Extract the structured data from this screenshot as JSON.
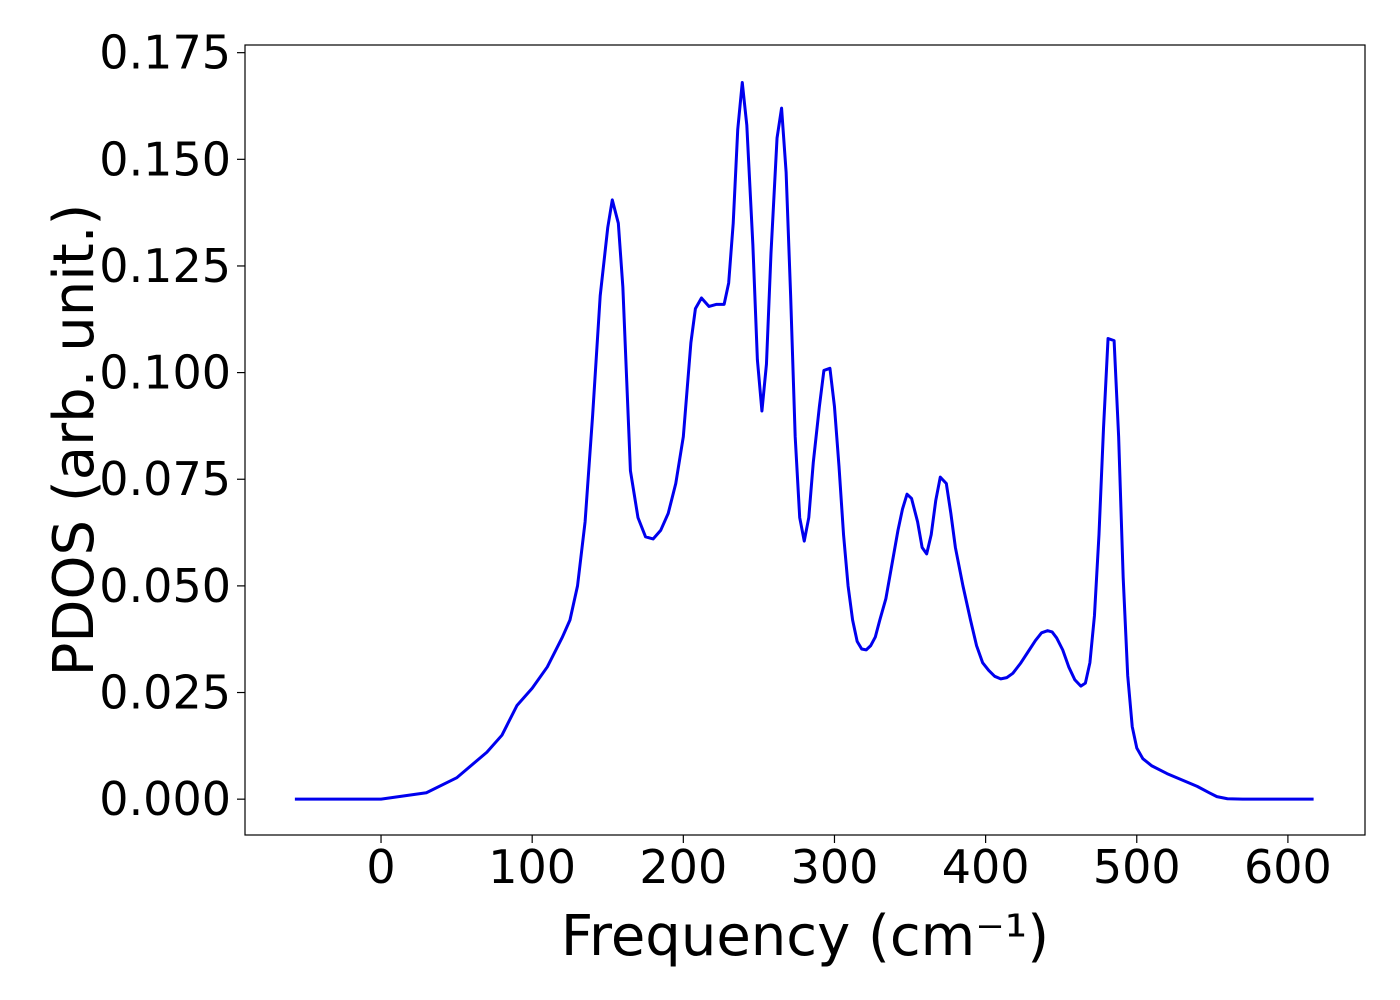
{
  "chart_data": {
    "type": "line",
    "xlabel": "Frequency (cm⁻¹)",
    "ylabel": "PDOS (arb. unit.)",
    "xlim": [
      -90,
      651
    ],
    "ylim": [
      -0.0084,
      0.1768
    ],
    "xticks": [
      0,
      100,
      200,
      300,
      400,
      500,
      600
    ],
    "yticks": [
      {
        "value": 0,
        "label": "0.000"
      },
      {
        "value": 0.025,
        "label": "0.025"
      },
      {
        "value": 0.05,
        "label": "0.050"
      },
      {
        "value": 0.075,
        "label": "0.075"
      },
      {
        "value": 0.1,
        "label": "0.100"
      },
      {
        "value": 0.125,
        "label": "0.125"
      },
      {
        "value": 0.15,
        "label": "0.150"
      },
      {
        "value": 0.175,
        "label": "0.175"
      }
    ],
    "grid": false,
    "series": [
      {
        "color": "#0000ee",
        "x": [
          -57,
          0,
          10,
          30,
          50,
          70,
          80,
          90,
          100,
          110,
          120,
          125,
          130,
          135,
          140,
          145,
          150,
          153,
          157,
          160,
          165,
          170,
          175,
          180,
          185,
          190,
          195,
          200,
          205,
          208,
          212,
          217,
          222,
          227,
          230,
          233,
          236,
          239,
          242,
          246,
          249,
          252,
          255,
          258,
          262,
          265,
          268,
          271,
          274,
          277,
          280,
          283,
          286,
          290,
          293,
          297,
          300,
          303,
          306,
          309,
          312,
          315,
          318,
          321,
          324,
          327,
          330,
          334,
          338,
          342,
          345,
          348,
          351,
          355,
          358,
          361,
          364,
          367,
          370,
          374,
          377,
          380,
          385,
          390,
          394,
          398,
          402,
          406,
          410,
          414,
          418,
          423,
          428,
          433,
          437,
          441,
          444,
          447,
          451,
          455,
          459,
          463,
          466,
          469,
          472,
          475,
          478,
          481,
          485,
          488,
          491,
          494,
          497,
          500,
          504,
          510,
          520,
          530,
          540,
          548,
          553,
          560,
          570,
          617
        ],
        "values": [
          0,
          0,
          0.0005,
          0.0015,
          0.005,
          0.011,
          0.015,
          0.022,
          0.026,
          0.031,
          0.038,
          0.042,
          0.05,
          0.065,
          0.09,
          0.118,
          0.134,
          0.1405,
          0.135,
          0.12,
          0.077,
          0.066,
          0.0615,
          0.061,
          0.063,
          0.067,
          0.074,
          0.085,
          0.107,
          0.115,
          0.1175,
          0.1155,
          0.116,
          0.116,
          0.121,
          0.135,
          0.157,
          0.168,
          0.158,
          0.13,
          0.103,
          0.091,
          0.102,
          0.128,
          0.155,
          0.162,
          0.147,
          0.118,
          0.085,
          0.066,
          0.0605,
          0.066,
          0.079,
          0.092,
          0.1005,
          0.101,
          0.092,
          0.078,
          0.062,
          0.05,
          0.042,
          0.037,
          0.0352,
          0.035,
          0.036,
          0.038,
          0.042,
          0.047,
          0.055,
          0.063,
          0.068,
          0.0715,
          0.0705,
          0.065,
          0.059,
          0.0575,
          0.062,
          0.07,
          0.0755,
          0.074,
          0.067,
          0.059,
          0.05,
          0.042,
          0.036,
          0.032,
          0.0302,
          0.0288,
          0.0282,
          0.0285,
          0.0295,
          0.0318,
          0.0345,
          0.0372,
          0.039,
          0.0395,
          0.0392,
          0.0378,
          0.035,
          0.031,
          0.028,
          0.0265,
          0.0272,
          0.032,
          0.043,
          0.062,
          0.087,
          0.108,
          0.1075,
          0.085,
          0.052,
          0.029,
          0.017,
          0.012,
          0.0095,
          0.0078,
          0.006,
          0.0045,
          0.003,
          0.0015,
          0.0006,
          0.0001,
          0,
          0
        ]
      }
    ]
  }
}
